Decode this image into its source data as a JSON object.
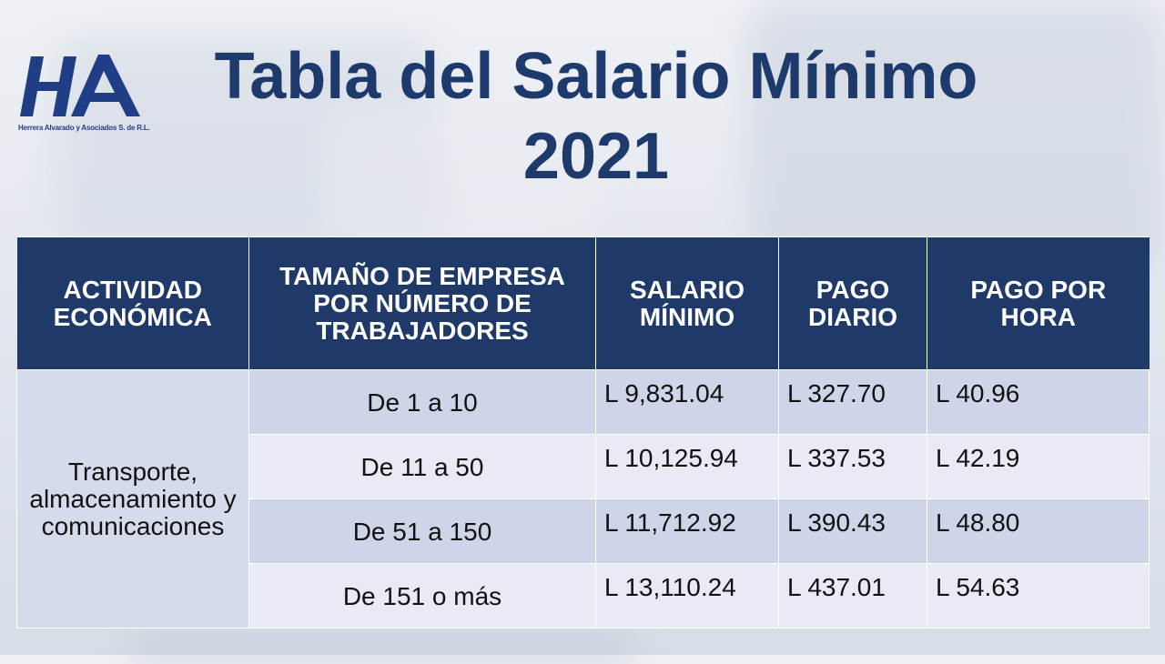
{
  "logo": {
    "monogram": "HA",
    "caption": "Herrera Alvarado y Asociados S. de R.L.",
    "brand_color": "#1f3e86"
  },
  "title": {
    "line1": "Tabla del Salario Mínimo",
    "line2": "2021",
    "color": "#1e3a6c"
  },
  "table": {
    "header_color": "#1f3a68",
    "headers": [
      "ACTIVIDAD ECONÓMICA",
      "TAMAÑO DE EMPRESA POR NÚMERO DE TRABAJADORES",
      "SALARIO MÍNIMO",
      "PAGO DIARIO",
      "PAGO POR HORA"
    ],
    "activity": "Transporte, almacenamiento y comunicaciones",
    "rows": [
      {
        "size": "De 1 a 10",
        "salario": "L 9,831.04",
        "diario": "L 327.70",
        "hora": "L 40.96"
      },
      {
        "size": "De 11 a 50",
        "salario": "L 10,125.94",
        "diario": "L 337.53",
        "hora": "L 42.19"
      },
      {
        "size": "De 51 a 150",
        "salario": "L 11,712.92",
        "diario": "L 390.43",
        "hora": "L 48.80"
      },
      {
        "size": "De 151 o más",
        "salario": "L 13,110.24",
        "diario": "L 437.01",
        "hora": "L 54.63"
      }
    ]
  }
}
